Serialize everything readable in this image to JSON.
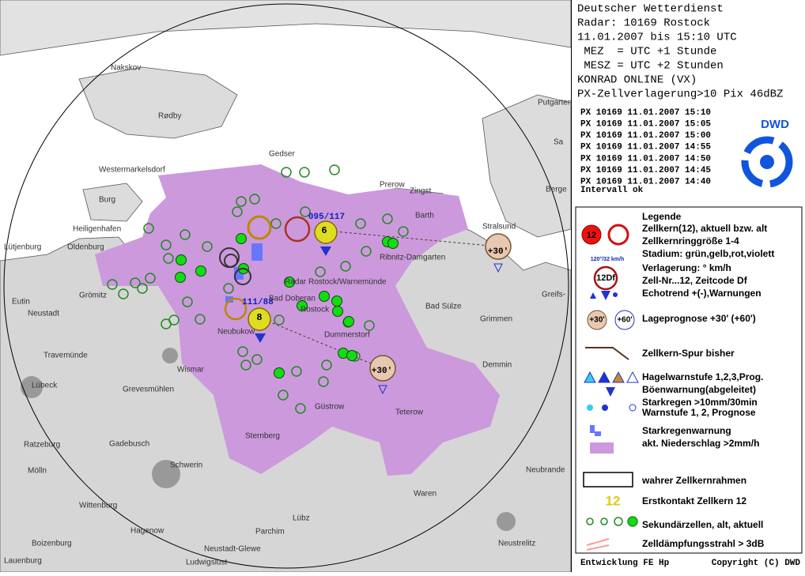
{
  "header": {
    "lines": [
      "Deutscher Wetterdienst",
      "Radar: 10169 Rostock",
      "11.01.2007 bis 15:10 UTC",
      " MEZ  = UTC +1 Stunde",
      " MESZ = UTC +2 Stunden",
      "KONRAD ONLINE (VX)",
      "PX-Zellverlagerung>10 Pix 46dBZ"
    ]
  },
  "status": {
    "lines": [
      "PX 10169 11.01.2007 15:10",
      "PX 10169 11.01.2007 15:05",
      "PX 10169 11.01.2007 15:00",
      "PX 10169 11.01.2007 14:55",
      "PX 10169 11.01.2007 14:50",
      "PX 10169 11.01.2007 14:45",
      "PX 10169 11.01.2007 14:40"
    ],
    "note": "Intervall ok"
  },
  "logo": "DWD",
  "legend": {
    "title": "Legende",
    "items": [
      [
        "Zellkern(12), aktuell bzw. alt",
        "Zellkernringgröße 1-4",
        "Stadium: grün,gelb,rot,violett"
      ],
      [
        "Verlagerung: ° km/h",
        "Zell-Nr...12, Zeitcode Df",
        "Echotrend +(-),Warnungen"
      ],
      [
        "Lageprognose +30' (+60')"
      ],
      [
        "Zellkern-Spur bisher"
      ],
      [
        "Hagelwarnstufe 1,2,3,Prog.",
        "Böenwarnung(abgeleitet)"
      ],
      [
        "Starkregen >10mm/30min",
        "Warnstufe 1, 2, Prognose"
      ],
      [
        "Starkregenwarnung",
        "akt. Niederschlag >2mm/h"
      ],
      [
        "wahrer Zellkernrahmen"
      ],
      [
        "Erstkontakt Zellkern 12"
      ],
      [
        "Sekundärzellen, alt, aktuell"
      ],
      [
        "Zelldämpfungsstrahl > 3dB"
      ]
    ],
    "symbols": [
      "12",
      "120°/32 km/h",
      "12Df",
      "+30'",
      "+60'",
      "12"
    ]
  },
  "footer": {
    "left": "Entwicklung FE Hp",
    "right": "Copyright (C) DWD"
  },
  "map": {
    "places": [
      "Nakskov",
      "Rødby",
      "Gedser",
      "Westermarkelsdorf",
      "Burg",
      "Heiligenhafen",
      "Prerow",
      "Zingst",
      "Barth",
      "Stralsund",
      "Putgarten",
      "Sa",
      "Berge",
      "Lütjenburg",
      "Oldenburg",
      "Ribnitz-Damgarten",
      "Radar Rostock/Warnemünde",
      "Grömitz",
      "Bad Doberan",
      "Rostock",
      "Eutin",
      "Neustadt",
      "Bad Sülze",
      "Grimmen",
      "Greifs-",
      "Neubukow",
      "Dummerstorf",
      "Travemünde",
      "Demmin",
      "Wismar",
      "Lübeck",
      "Grevesmühlen",
      "Güstrow",
      "Teterow",
      "Sternberg",
      "Ratzeburg",
      "Gadebusch",
      "Schwerin",
      "Mölln",
      "Neubrande",
      "Wittenburg",
      "Waren",
      "Hagenow",
      "Lübz",
      "Parchim",
      "Boizenburg",
      "Neustadt-Glewe",
      "Neustrelitz",
      "Lauenburg",
      "Ludwigslust"
    ],
    "cells": [
      "095/117",
      "6",
      "111/88",
      "8",
      "+30'",
      "+30'"
    ]
  }
}
